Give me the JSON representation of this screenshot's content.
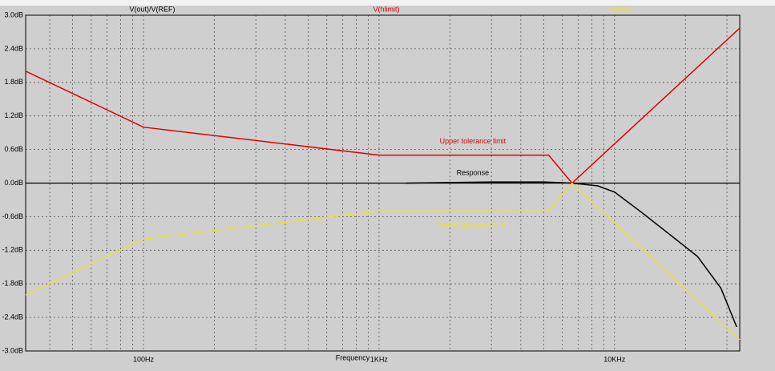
{
  "chart_data": {
    "type": "line",
    "x_label": "Frequency",
    "log_x": true,
    "grid": true,
    "xlim": [
      31.6,
      34000
    ],
    "ylim": [
      -3,
      3
    ],
    "xticks": [
      {
        "value": 100,
        "label": "100Hz"
      },
      {
        "value": 1000,
        "label": "1KHz"
      },
      {
        "value": 10000,
        "label": "10KHz"
      }
    ],
    "x_minor_ticks": [
      40,
      50,
      60,
      70,
      80,
      90,
      200,
      300,
      400,
      500,
      600,
      700,
      800,
      900,
      2000,
      3000,
      4000,
      5000,
      6000,
      7000,
      8000,
      9000,
      20000,
      30000
    ],
    "yticks": [
      {
        "value": 3,
        "label": "3.0dB"
      },
      {
        "value": 2.4,
        "label": "2.4dB"
      },
      {
        "value": 1.8,
        "label": "1.8dB"
      },
      {
        "value": 1.2,
        "label": "1.2dB"
      },
      {
        "value": 0.6,
        "label": "0.6dB"
      },
      {
        "value": 0,
        "label": "0.0dB"
      },
      {
        "value": -0.6,
        "label": "-0.6dB"
      },
      {
        "value": -1.2,
        "label": "-1.2dB"
      },
      {
        "value": -1.8,
        "label": "-1.8dB"
      },
      {
        "value": -2.4,
        "label": "-2.4dB"
      },
      {
        "value": -3,
        "label": "-3.0dB"
      }
    ],
    "series": [
      {
        "name": "V(out)/V(REF)",
        "color": "#000000",
        "x": [
          1300,
          3000,
          5000,
          6600,
          8500,
          10000,
          13000,
          16700,
          22500,
          28300,
          33000
        ],
        "values": [
          0,
          0.02,
          0.02,
          0,
          -0.05,
          -0.16,
          -0.52,
          -0.88,
          -1.31,
          -1.88,
          -2.57
        ]
      },
      {
        "name": "V(hlimit)",
        "color": "#e00000",
        "x": [
          31.6,
          100,
          1000,
          5250,
          6600,
          34000
        ],
        "values": [
          2.0,
          1.0,
          0.5,
          0.5,
          0,
          2.77
        ]
      },
      {
        "name": "V(llimit)",
        "color": "#e8e040",
        "x": [
          31.6,
          100,
          1000,
          5250,
          6600,
          34000
        ],
        "values": [
          -2.0,
          -1.0,
          -0.5,
          -0.5,
          0,
          -2.8
        ]
      }
    ],
    "annotations": [
      {
        "text": "Upper tolerance limit",
        "x": 2500,
        "y": 0.74,
        "color": "#e00000"
      },
      {
        "text": "Response",
        "x": 2500,
        "y": 0.18,
        "color": "#000000"
      },
      {
        "text": "Lower tolerance limit",
        "x": 2500,
        "y": -0.75,
        "color": "#e8e040"
      }
    ]
  }
}
